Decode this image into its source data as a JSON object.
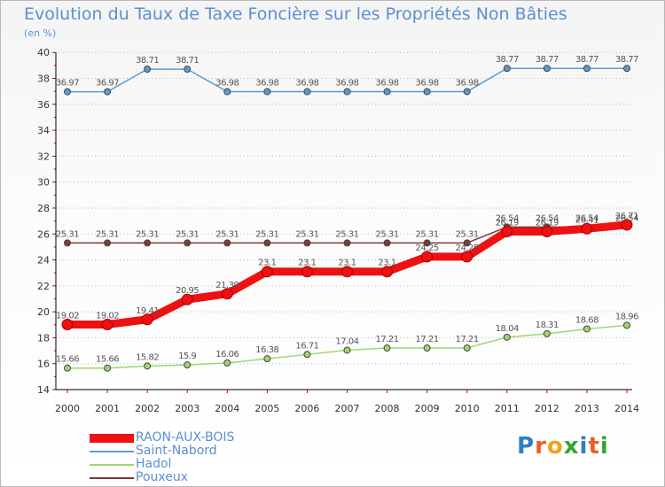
{
  "title": "Evolution du Taux de Taxe Foncière sur les Propriétés Non Bâties",
  "unit": "(en %)",
  "brand": {
    "text": "Proxiti",
    "colors": [
      "#2d7fc0",
      "#e85e24",
      "#f2a21c",
      "#35a535",
      "#2d7fc0",
      "#e85e24",
      "#35a535"
    ]
  },
  "chart_data": {
    "type": "line",
    "x": [
      "2000",
      "2001",
      "2002",
      "2003",
      "2004",
      "2005",
      "2006",
      "2007",
      "2008",
      "2009",
      "2010",
      "2011",
      "2012",
      "2013",
      "2014"
    ],
    "ylim": [
      14,
      40
    ],
    "yticks": [
      14,
      16,
      18,
      20,
      22,
      24,
      26,
      28,
      30,
      32,
      34,
      36,
      38,
      40
    ],
    "grid": "dotted-horizontal",
    "legend_position": "bottom-left",
    "series": [
      {
        "name": "Pouxeux",
        "color": "#7a3b3b",
        "values": [
          25.31,
          25.31,
          25.31,
          25.31,
          25.31,
          25.31,
          25.31,
          25.31,
          25.31,
          25.31,
          25.31,
          26.54,
          26.54,
          26.54,
          26.54
        ],
        "labels": [
          "25.31",
          "25.31",
          "25.31",
          "25.31",
          "25.31",
          "25.31",
          "25.31",
          "25.31",
          "25.31",
          "25.31",
          "25.31",
          "26.54",
          "26.54",
          "26.54",
          "26.54"
        ]
      },
      {
        "name": "Hadol",
        "color": "#9fd66e",
        "values": [
          15.66,
          15.66,
          15.82,
          15.9,
          16.06,
          16.38,
          16.71,
          17.04,
          17.21,
          17.21,
          17.21,
          18.04,
          18.31,
          18.68,
          18.96
        ],
        "labels": [
          "15.66",
          "15.66",
          "15.82",
          "15.9",
          "16.06",
          "16.38",
          "16.71",
          "17.04",
          "17.21",
          "17.21",
          "17.21",
          "18.04",
          "18.31",
          "18.68",
          "18.96"
        ]
      },
      {
        "name": "Saint-Nabord",
        "color": "#5c9bd1",
        "values": [
          36.97,
          36.97,
          38.71,
          38.71,
          36.98,
          36.98,
          36.98,
          36.98,
          36.98,
          36.98,
          36.98,
          38.77,
          38.77,
          38.77,
          38.77
        ],
        "labels": [
          "36.97",
          "36.97",
          "38.71",
          "38.71",
          "36.98",
          "36.98",
          "36.98",
          "36.98",
          "36.98",
          "36.98",
          "36.98",
          "38.77",
          "38.77",
          "38.77",
          "38.77"
        ]
      },
      {
        "name": "RAON-AUX-BOIS",
        "color": "#ee1111",
        "values": [
          19.02,
          19.02,
          19.41,
          20.95,
          21.39,
          23.1,
          23.1,
          23.1,
          23.1,
          24.25,
          24.25,
          26.19,
          26.19,
          26.41,
          26.71
        ],
        "labels": [
          "19.02",
          "19.02",
          "19.41",
          "20.95",
          "21.39",
          "23.1",
          "23.1",
          "23.1",
          "23.1",
          "24.25",
          "24.25",
          "26.19",
          "26.19",
          "26.41",
          "26.71"
        ]
      }
    ],
    "legend_order": [
      "RAON-AUX-BOIS",
      "Saint-Nabord",
      "Hadol",
      "Pouxeux"
    ]
  }
}
